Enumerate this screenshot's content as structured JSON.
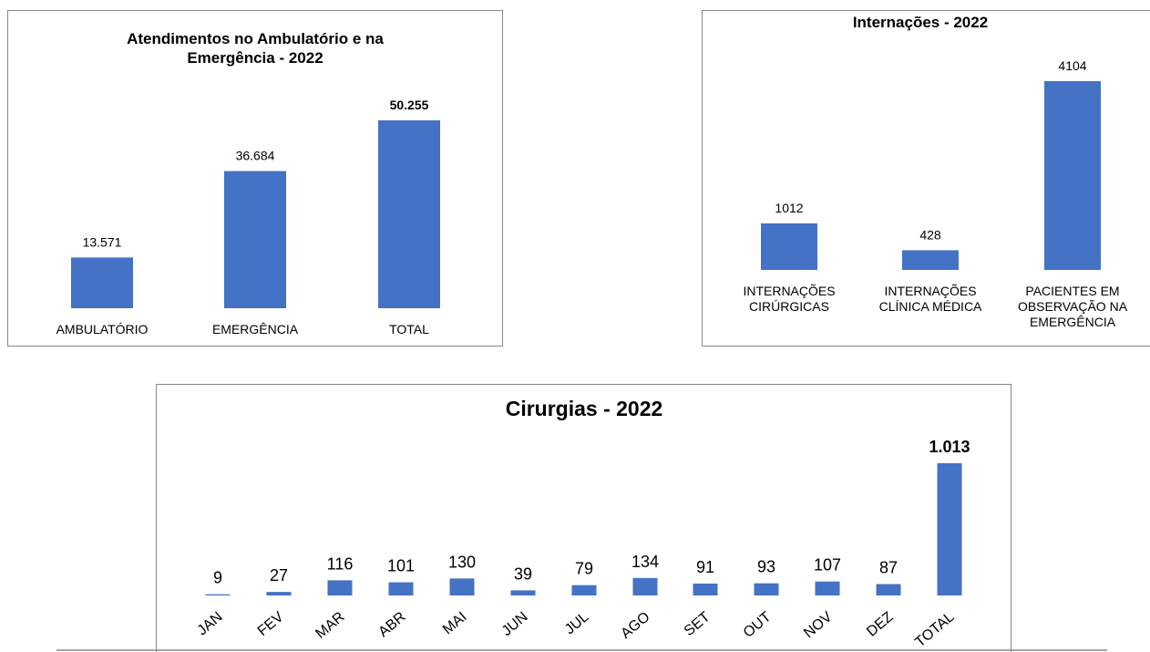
{
  "chart_data": [
    {
      "type": "bar",
      "title": "Atendimentos  no Ambulatório e na\nEmergência - 2022",
      "categories": [
        "AMBULATÓRIO",
        "EMERGÊNCIA",
        "TOTAL"
      ],
      "values": [
        13571,
        36684,
        50255
      ],
      "value_labels": [
        "13.571",
        "36.684",
        "50.255"
      ],
      "color": "#4472c4",
      "ylim": [
        0,
        55000
      ]
    },
    {
      "type": "bar",
      "title": "Internações - 2022",
      "categories": [
        "INTERNAÇÕES\nCIRÚRGICAS",
        "INTERNAÇÕES\nCLÍNICA MÉDICA",
        "PACIENTES EM\nOBSERVAÇÃO NA\nEMERGÊNCIA"
      ],
      "values": [
        1012,
        428,
        4104
      ],
      "value_labels": [
        "1012",
        "428",
        "4104"
      ],
      "color": "#4472c4",
      "ylim": [
        0,
        4500
      ]
    },
    {
      "type": "bar",
      "title": "Cirurgias - 2022",
      "categories": [
        "JAN",
        "FEV",
        "MAR",
        "ABR",
        "MAI",
        "JUN",
        "JUL",
        "AGO",
        "SET",
        "OUT",
        "NOV",
        "DEZ",
        "TOTAL"
      ],
      "values": [
        9,
        27,
        116,
        101,
        130,
        39,
        79,
        134,
        91,
        93,
        107,
        87,
        1013
      ],
      "value_labels": [
        "9",
        "27",
        "116",
        "101",
        "130",
        "39",
        "79",
        "134",
        "91",
        "93",
        "107",
        "87",
        "1.013"
      ],
      "color": "#4472c4",
      "ylim": [
        0,
        1100
      ]
    }
  ]
}
